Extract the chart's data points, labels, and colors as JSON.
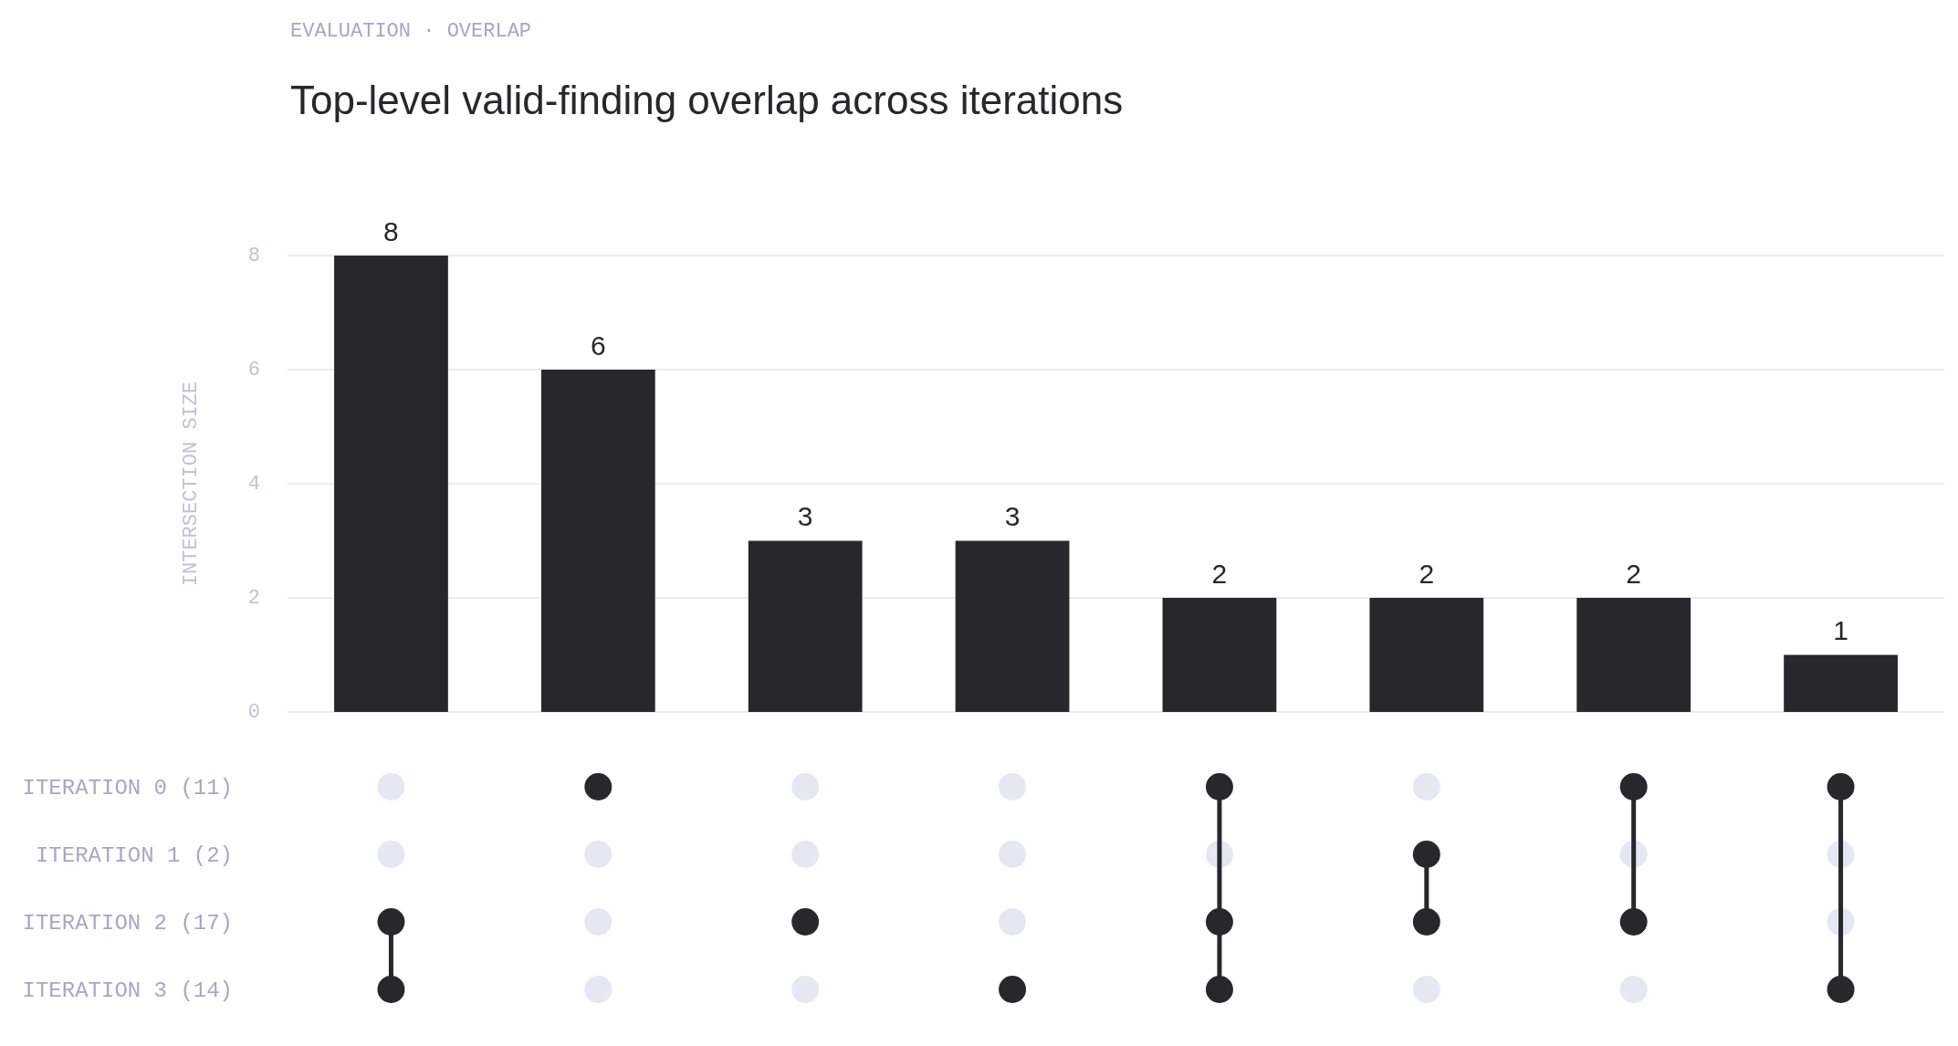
{
  "chart_data": [
    {
      "type": "bar",
      "subtitle": "EVALUATION · OVERLAP",
      "title": "Top-level valid-finding overlap across iterations",
      "ylabel": "INTERSECTION SIZE",
      "categories": [
        null,
        null,
        null,
        null,
        null,
        null,
        null,
        null
      ],
      "values": [
        8,
        6,
        3,
        3,
        2,
        2,
        2,
        1
      ],
      "color": "#27272c",
      "ylim": [
        0,
        8
      ],
      "yticks": [
        0,
        2,
        4,
        6,
        8
      ],
      "grid": "y",
      "data_labels": true
    },
    {
      "type": "other",
      "y_categories": [
        "ITERATION 0 (11)",
        "ITERATION 1 (2)",
        "ITERATION 2 (17)",
        "ITERATION 3 (14)"
      ],
      "color": "#27272c",
      "cells": [
        [
          false,
          true,
          false,
          false,
          true,
          false,
          true,
          true
        ],
        [
          false,
          false,
          false,
          false,
          false,
          true,
          false,
          false
        ],
        [
          true,
          false,
          true,
          false,
          true,
          true,
          true,
          false
        ],
        [
          true,
          false,
          false,
          true,
          true,
          false,
          false,
          true
        ]
      ]
    }
  ]
}
